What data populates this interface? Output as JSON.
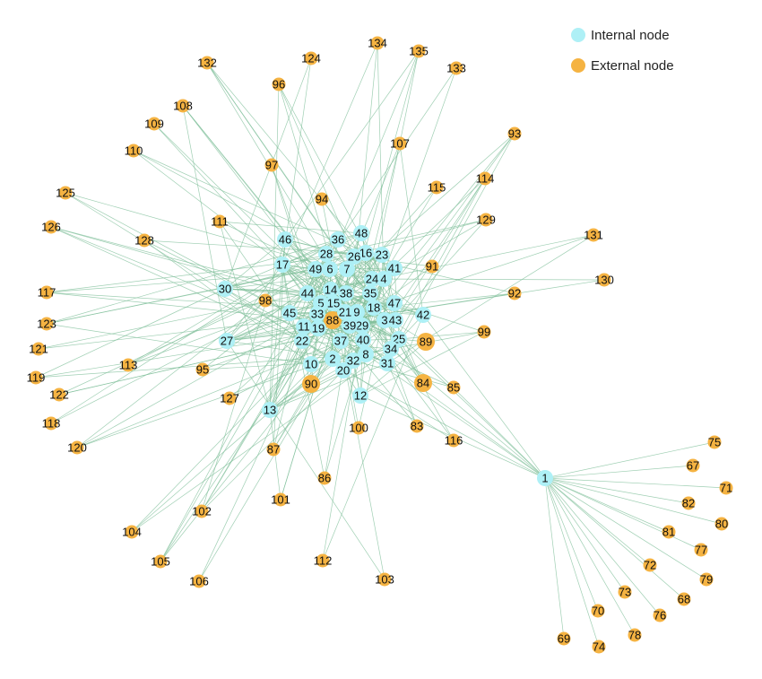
{
  "legend": [
    "Internal node",
    "External node"
  ],
  "internal_nodes": [
    "1",
    "2",
    "3",
    "4",
    "5",
    "6",
    "7",
    "8",
    "9",
    "10",
    "11",
    "12",
    "13",
    "14",
    "15",
    "16",
    "17",
    "18",
    "19",
    "20",
    "21",
    "22",
    "23",
    "24",
    "25",
    "26",
    "27",
    "28",
    "29",
    "30",
    "31",
    "32",
    "33",
    "34",
    "35",
    "36",
    "37",
    "38",
    "39",
    "40",
    "41",
    "42",
    "43",
    "44",
    "45",
    "46",
    "47",
    "48",
    "49"
  ],
  "external_nodes": [
    "67",
    "68",
    "69",
    "70",
    "71",
    "72",
    "73",
    "74",
    "75",
    "76",
    "77",
    "78",
    "79",
    "80",
    "81",
    "82",
    "83",
    "84",
    "85",
    "86",
    "87",
    "88",
    "89",
    "90",
    "91",
    "92",
    "93",
    "94",
    "95",
    "96",
    "97",
    "98",
    "99",
    "100",
    "101",
    "102",
    "103",
    "104",
    "105",
    "106",
    "107",
    "108",
    "109",
    "110",
    "111",
    "112",
    "113",
    "114",
    "115",
    "116",
    "117",
    "118",
    "119",
    "120",
    "121",
    "122",
    "123",
    "124",
    "125",
    "126",
    "127",
    "128",
    "129",
    "130",
    "131",
    "132",
    "133",
    "134",
    "135"
  ]
}
